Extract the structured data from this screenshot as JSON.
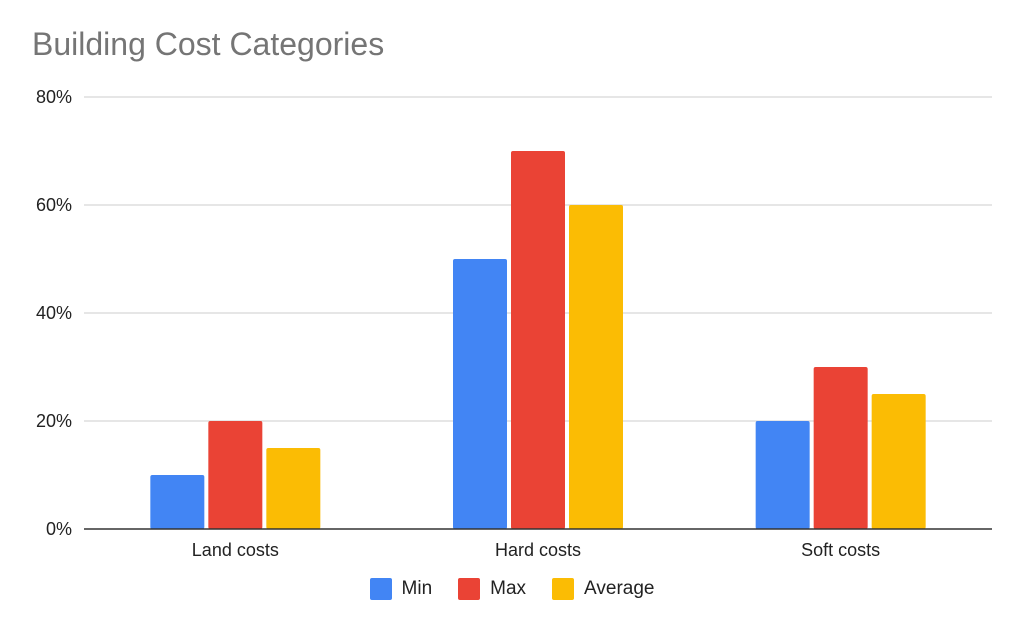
{
  "chart_data": {
    "type": "bar",
    "title": "Building Cost Categories",
    "categories": [
      "Land costs",
      "Hard costs",
      "Soft costs"
    ],
    "series": [
      {
        "name": "Min",
        "color": "#4285F4",
        "values": [
          10,
          50,
          20
        ]
      },
      {
        "name": "Max",
        "color": "#EA4335",
        "values": [
          20,
          70,
          30
        ]
      },
      {
        "name": "Average",
        "color": "#FBBC04",
        "values": [
          15,
          60,
          25
        ]
      }
    ],
    "ylim": [
      0,
      80
    ],
    "yticks": [
      "0%",
      "20%",
      "40%",
      "60%",
      "80%"
    ],
    "ytick_values": [
      0,
      20,
      40,
      60,
      80
    ],
    "grid": true,
    "legend_position": "bottom"
  }
}
